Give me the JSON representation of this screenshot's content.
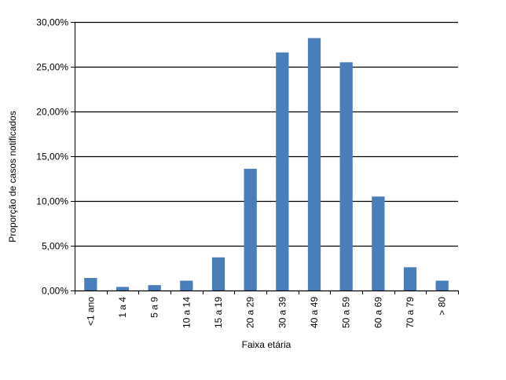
{
  "chart_data": {
    "type": "bar",
    "title": "",
    "xlabel": "Faixa etária",
    "ylabel": "Proporção de casos notificados",
    "categories": [
      "<1 ano",
      "1 a 4",
      "5 a 9",
      "10 a 14",
      "15 a 19",
      "20 a 29",
      "30 a 39",
      "40 a 49",
      "50 a 59",
      "60 a 69",
      "70 a 79",
      "> 80"
    ],
    "values": [
      1.4,
      0.4,
      0.6,
      1.1,
      3.7,
      13.6,
      26.6,
      28.2,
      25.5,
      10.5,
      2.6,
      1.1
    ],
    "ylim": [
      0,
      30
    ],
    "yticks": [
      0,
      5,
      10,
      15,
      20,
      25,
      30
    ],
    "ytick_labels": [
      "0,00%",
      "5,00%",
      "10,00%",
      "15,00%",
      "20,00%",
      "25,00%",
      "30,00%"
    ],
    "grid": true,
    "legend": false,
    "bar_color": "#4a7ebb",
    "grid_color": "#000000"
  }
}
